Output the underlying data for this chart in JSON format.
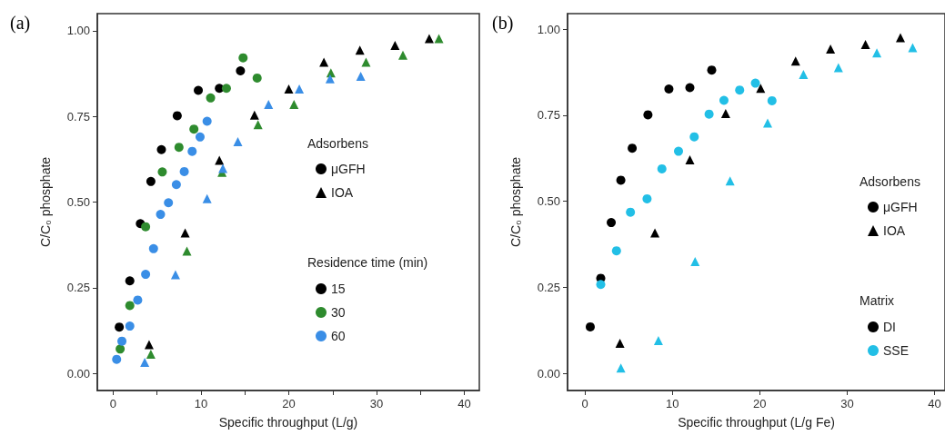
{
  "chart_data": [
    {
      "type": "scatter",
      "title": "(a)",
      "xlabel": "Specific throughput (L/g)",
      "ylabel": "C/C₀ phosphate",
      "xlim": [
        -1.8,
        41.7
      ],
      "ylim": [
        -0.05,
        1.05
      ],
      "xticks": [
        0,
        {
          "value": 5,
          "label": null
        },
        10,
        {
          "value": 15,
          "label": null
        },
        20,
        {
          "value": 25,
          "label": null
        },
        30,
        {
          "value": 35,
          "label": null
        },
        40
      ],
      "yticks": [
        {
          "value": 0,
          "label": "0.00"
        },
        {
          "value": 0.25,
          "label": "0.25"
        },
        {
          "value": 0.5,
          "label": "0.50"
        },
        {
          "value": 0.75,
          "label": "0.75"
        },
        {
          "value": 1,
          "label": "1.00"
        }
      ],
      "grid": false,
      "legend": "right",
      "legend_title": "Residence time (min)",
      "annotations": [
        "Adsorbens"
      ],
      "series": [
        {
          "name": "μGFH",
          "color": "#000000",
          "marker": "circle"
        },
        {
          "name": "IOA",
          "color": "#000000",
          "marker": "triangle"
        },
        {
          "name": "15",
          "color": "#000000",
          "marker": "circle",
          "x": [
            0.7,
            1.9,
            3.1,
            4.3,
            5.5,
            7.3,
            9.7,
            12.1,
            14.5
          ],
          "values": [
            0.135,
            0.27,
            0.437,
            0.56,
            0.653,
            0.752,
            0.826,
            0.832,
            0.883
          ]
        },
        {
          "name": "30",
          "color": "#2e8b2e",
          "marker": "circle",
          "x": [
            0.8,
            1.9,
            3.7,
            5.6,
            7.5,
            9.2,
            11.1,
            12.9,
            14.8,
            16.4
          ],
          "values": [
            0.071,
            0.198,
            0.428,
            0.588,
            0.66,
            0.713,
            0.804,
            0.832,
            0.921,
            0.862
          ]
        },
        {
          "name": "60",
          "color": "#3a8ee6",
          "marker": "circle",
          "x": [
            0.4,
            1.0,
            1.9,
            2.8,
            3.7,
            4.6,
            5.4,
            6.3,
            7.2,
            8.1,
            9.0,
            9.9,
            10.7
          ],
          "values": [
            0.041,
            0.094,
            0.138,
            0.214,
            0.289,
            0.364,
            0.464,
            0.498,
            0.551,
            0.589,
            0.648,
            0.69,
            0.736
          ]
        },
        {
          "color": "#000000",
          "marker": "triangle",
          "x": [
            4.1,
            8.2,
            12.1,
            16.1,
            20.0,
            24.0,
            28.1,
            32.1,
            36.0
          ],
          "values": [
            0.084,
            0.41,
            0.622,
            0.754,
            0.83,
            0.908,
            0.943,
            0.957,
            0.977
          ]
        },
        {
          "color": "#2e8b2e",
          "marker": "triangle",
          "x": [
            4.3,
            8.4,
            12.4,
            16.5,
            20.6,
            24.8,
            28.8,
            33.0,
            37.1
          ],
          "values": [
            0.056,
            0.357,
            0.587,
            0.726,
            0.785,
            0.877,
            0.908,
            0.929,
            0.977
          ]
        },
        {
          "color": "#3a8ee6",
          "marker": "triangle",
          "x": [
            3.6,
            7.1,
            10.7,
            12.5,
            14.2,
            17.7,
            21.2,
            24.7,
            28.2
          ],
          "values": [
            0.032,
            0.288,
            0.51,
            0.598,
            0.676,
            0.785,
            0.83,
            0.86,
            0.867
          ]
        }
      ]
    },
    {
      "type": "scatter",
      "title": "(b)",
      "xlabel": "Specific throughput (L/g Fe)",
      "ylabel": "C/C₀ phosphate",
      "xlim": [
        -2,
        41.2
      ],
      "ylim": [
        -0.05,
        1.045
      ],
      "xticks": [
        0,
        10,
        20,
        30,
        40
      ],
      "yticks": [
        {
          "value": 0,
          "label": "0.00"
        },
        {
          "value": 0.25,
          "label": "0.25"
        },
        {
          "value": 0.5,
          "label": "0.50"
        },
        {
          "value": 0.75,
          "label": "0.75"
        },
        {
          "value": 1,
          "label": "1.00"
        }
      ],
      "grid": false,
      "legend": "right",
      "legend_title": "Matrix",
      "annotations": [
        "Adsorbens"
      ],
      "series": [
        {
          "name": "μGFH",
          "color": "#000000",
          "marker": "circle"
        },
        {
          "name": "IOA",
          "color": "#000000",
          "marker": "triangle"
        },
        {
          "name": "DI",
          "color": "#000000",
          "marker": "circle",
          "x": [
            0.6,
            1.8,
            3.0,
            4.1,
            5.4,
            7.2,
            9.6,
            12.0,
            14.5
          ],
          "values": [
            0.135,
            0.276,
            0.438,
            0.561,
            0.654,
            0.751,
            0.826,
            0.83,
            0.881
          ]
        },
        {
          "name": "SSE",
          "color": "#22bfe6",
          "marker": "circle",
          "x": [
            1.8,
            3.6,
            5.2,
            7.1,
            8.8,
            10.7,
            12.5,
            14.2,
            15.9,
            17.7,
            19.5,
            21.4
          ],
          "values": [
            0.258,
            0.356,
            0.468,
            0.507,
            0.594,
            0.645,
            0.687,
            0.753,
            0.793,
            0.823,
            0.843,
            0.792
          ]
        },
        {
          "color": "#000000",
          "marker": "triangle",
          "x": [
            4.0,
            8.0,
            12.0,
            16.1,
            20.1,
            24.1,
            28.1,
            32.1,
            36.1
          ],
          "values": [
            0.087,
            0.408,
            0.62,
            0.755,
            0.828,
            0.907,
            0.942,
            0.955,
            0.975
          ]
        },
        {
          "color": "#22bfe6",
          "marker": "triangle",
          "x": [
            4.1,
            8.4,
            12.6,
            16.6,
            20.9,
            25.0,
            29.0,
            33.4,
            37.5
          ],
          "values": [
            0.015,
            0.095,
            0.325,
            0.559,
            0.727,
            0.868,
            0.888,
            0.931,
            0.946
          ]
        }
      ]
    }
  ]
}
